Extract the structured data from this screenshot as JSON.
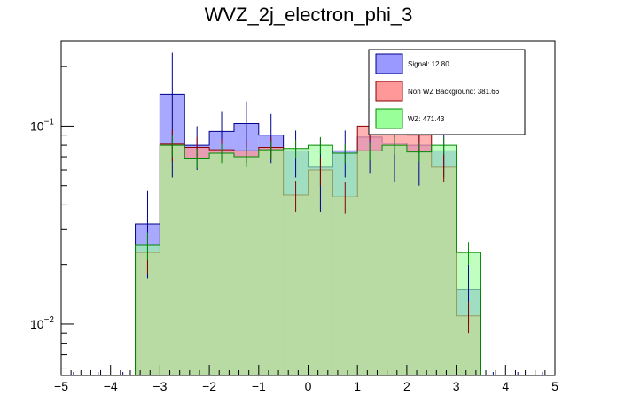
{
  "chart_data": {
    "type": "histogram",
    "title": "WVZ_2j_electron_phi_3",
    "xlabel": "",
    "ylabel": "",
    "xlim": [
      -5,
      5
    ],
    "ylim": [
      0.0055,
      0.27
    ],
    "yscale": "log",
    "x_ticks": [
      "−5",
      "−4",
      "−3",
      "−2",
      "−1",
      "0",
      "1",
      "2",
      "3",
      "4",
      "5"
    ],
    "y_ticks": [
      {
        "value": 0.1,
        "base": "10",
        "exp": "−1"
      },
      {
        "value": 0.01,
        "base": "10",
        "exp": "−2"
      }
    ],
    "bin_edges": [
      -3.5,
      -3.0,
      -2.5,
      -2.0,
      -1.5,
      -1.0,
      -0.5,
      0.0,
      0.5,
      1.0,
      1.5,
      2.0,
      2.5,
      3.0,
      3.5
    ],
    "series": [
      {
        "name": "Signal",
        "legend_label": "Signal: 12.80",
        "color": "#9999ff",
        "edge_color": "#00008b",
        "values": [
          0.032,
          0.145,
          0.08,
          0.094,
          0.103,
          0.09,
          0.075,
          0.062,
          0.075,
          0.088,
          0.082,
          0.08,
          0.075,
          0.015
        ],
        "errors": [
          0.015,
          0.09,
          0.02,
          0.025,
          0.03,
          0.025,
          0.02,
          0.025,
          0.02,
          0.03,
          0.03,
          0.03,
          0.02,
          0.005
        ]
      },
      {
        "name": "Non WZ Background",
        "legend_label": "Non WZ Background: 381.66",
        "color": "#ff9999",
        "edge_color": "#8b0000",
        "values": [
          0.023,
          0.081,
          0.078,
          0.076,
          0.075,
          0.078,
          0.045,
          0.06,
          0.044,
          0.1,
          0.092,
          0.09,
          0.062,
          0.011
        ],
        "errors": [
          0.005,
          0.015,
          0.01,
          0.01,
          0.01,
          0.01,
          0.008,
          0.01,
          0.008,
          0.015,
          0.015,
          0.015,
          0.01,
          0.002
        ]
      },
      {
        "name": "WZ",
        "legend_label": "WZ: 471.43",
        "color": "#99ff99",
        "edge_color": "#008b00",
        "values": [
          0.025,
          0.08,
          0.069,
          0.073,
          0.07,
          0.076,
          0.077,
          0.08,
          0.073,
          0.075,
          0.08,
          0.074,
          0.08,
          0.023
        ],
        "errors": [
          0.004,
          0.01,
          0.008,
          0.008,
          0.008,
          0.008,
          0.008,
          0.008,
          0.008,
          0.008,
          0.008,
          0.008,
          0.008,
          0.003
        ]
      }
    ],
    "legend_position": "top-right"
  }
}
